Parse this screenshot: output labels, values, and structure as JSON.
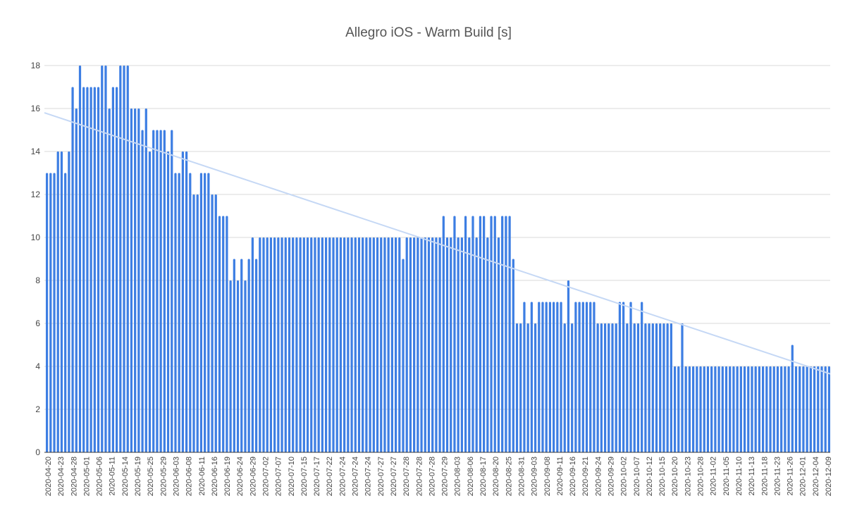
{
  "chart_data": {
    "type": "bar",
    "title": "Allegro iOS - Warm Build [s]",
    "xlabel": "",
    "ylabel": "",
    "ylim": [
      0,
      18
    ],
    "yticks": [
      0,
      2,
      4,
      6,
      8,
      10,
      12,
      14,
      16,
      18
    ],
    "grid": true,
    "bar_color": "#3d7ee3",
    "gridline_color": "#d9d9d9",
    "trendline": {
      "color": "#c5d8f5",
      "start": 15.8,
      "end": 3.65
    },
    "x_tick_labels": [
      "2020-04-20",
      "2020-04-23",
      "2020-04-28",
      "2020-05-01",
      "2020-05-06",
      "2020-05-11",
      "2020-05-14",
      "2020-05-19",
      "2020-05-25",
      "2020-05-29",
      "2020-06-03",
      "2020-06-08",
      "2020-06-11",
      "2020-06-16",
      "2020-06-19",
      "2020-06-24",
      "2020-06-29",
      "2020-07-02",
      "2020-07-07",
      "2020-07-10",
      "2020-07-15",
      "2020-07-17",
      "2020-07-22",
      "2020-07-24",
      "2020-07-24",
      "2020-07-24",
      "2020-07-27",
      "2020-07-27",
      "2020-07-28",
      "2020-07-28",
      "2020-07-28",
      "2020-07-29",
      "2020-08-03",
      "2020-08-06",
      "2020-08-17",
      "2020-08-20",
      "2020-08-25",
      "2020-08-31",
      "2020-09-03",
      "2020-09-08",
      "2020-09-11",
      "2020-09-16",
      "2020-09-21",
      "2020-09-24",
      "2020-09-29",
      "2020-10-02",
      "2020-10-07",
      "2020-10-12",
      "2020-10-15",
      "2020-10-20",
      "2020-10-23",
      "2020-10-28",
      "2020-11-02",
      "2020-11-05",
      "2020-11-10",
      "2020-11-13",
      "2020-11-18",
      "2020-11-23",
      "2020-11-26",
      "2020-12-01",
      "2020-12-04",
      "2020-12-09"
    ],
    "values": [
      13,
      13,
      13,
      14,
      14,
      13,
      14,
      17,
      16,
      18,
      17,
      17,
      17,
      17,
      17,
      18,
      18,
      16,
      17,
      17,
      18,
      18,
      18,
      16,
      16,
      16,
      15,
      16,
      14,
      15,
      15,
      15,
      15,
      14,
      15,
      13,
      13,
      14,
      14,
      13,
      12,
      12,
      13,
      13,
      13,
      12,
      12,
      11,
      11,
      11,
      8,
      9,
      8,
      9,
      8,
      9,
      10,
      9,
      10,
      10,
      10,
      10,
      10,
      10,
      10,
      10,
      10,
      10,
      10,
      10,
      10,
      10,
      10,
      10,
      10,
      10,
      10,
      10,
      10,
      10,
      10,
      10,
      10,
      10,
      10,
      10,
      10,
      10,
      10,
      10,
      10,
      10,
      10,
      10,
      10,
      10,
      10,
      9,
      10,
      10,
      10,
      10,
      10,
      10,
      10,
      10,
      10,
      10,
      11,
      10,
      10,
      11,
      10,
      10,
      11,
      10,
      11,
      10,
      11,
      11,
      10,
      11,
      11,
      10,
      11,
      11,
      11,
      9,
      6,
      6,
      7,
      6,
      7,
      6,
      7,
      7,
      7,
      7,
      7,
      7,
      7,
      6,
      8,
      6,
      7,
      7,
      7,
      7,
      7,
      7,
      6,
      6,
      6,
      6,
      6,
      6,
      7,
      7,
      6,
      7,
      6,
      6,
      7,
      6,
      6,
      6,
      6,
      6,
      6,
      6,
      6,
      4,
      4,
      6,
      4,
      4,
      4,
      4,
      4,
      4,
      4,
      4,
      4,
      4,
      4,
      4,
      4,
      4,
      4,
      4,
      4,
      4,
      4,
      4,
      4,
      4,
      4,
      4,
      4,
      4,
      4,
      4,
      4,
      5,
      4,
      4,
      4,
      4,
      4,
      4,
      4,
      4,
      4,
      4
    ]
  }
}
